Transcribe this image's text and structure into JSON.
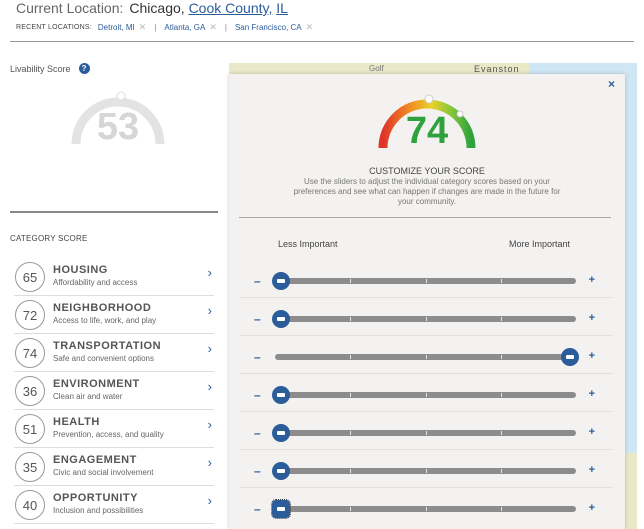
{
  "header": {
    "current_label": "Current Location:",
    "city": "Chicago,",
    "county": "Cook County,",
    "state": "IL",
    "recent_label": "RECENT LOCATIONS:",
    "recent": [
      "Detroit, MI",
      "Atlanta, GA",
      "San Francisco, CA"
    ]
  },
  "left": {
    "livability_label": "Livability Score",
    "score": "53",
    "category_title": "CATEGORY SCORE",
    "categories": [
      {
        "score": "65",
        "name": "HOUSING",
        "desc": "Affordability and access"
      },
      {
        "score": "72",
        "name": "NEIGHBORHOOD",
        "desc": "Access to life, work, and play"
      },
      {
        "score": "74",
        "name": "TRANSPORTATION",
        "desc": "Safe and convenient options"
      },
      {
        "score": "36",
        "name": "ENVIRONMENT",
        "desc": "Clean air and water"
      },
      {
        "score": "51",
        "name": "HEALTH",
        "desc": "Prevention, access, and quality"
      },
      {
        "score": "35",
        "name": "ENGAGEMENT",
        "desc": "Civic and social involvement"
      },
      {
        "score": "40",
        "name": "OPPORTUNITY",
        "desc": "Inclusion and possibilities"
      }
    ]
  },
  "map": {
    "label1": "Golf",
    "label2": "Evanston"
  },
  "modal": {
    "close": "×",
    "score": "74",
    "customize_title": "CUSTOMIZE YOUR SCORE",
    "customize_desc": "Use the sliders to adjust the individual category scores based on your preferences and see what can happen if changes are made in the future for your community.",
    "less_label": "Less Important",
    "more_label": "More Important",
    "minus": "–",
    "plus": "+",
    "sliders": [
      {
        "category": "HOUSING",
        "level": 0
      },
      {
        "category": "NEIGHBORHOOD",
        "level": 0
      },
      {
        "category": "TRANSPORTATION",
        "level": 1
      },
      {
        "category": "ENVIRONMENT",
        "level": 0
      },
      {
        "category": "HEALTH",
        "level": 0
      },
      {
        "category": "ENGAGEMENT",
        "level": 0
      },
      {
        "category": "OPPORTUNITY",
        "level": 0
      }
    ]
  },
  "colors": {
    "accent": "#2a5d9a",
    "score_green": "#2ea23c",
    "gauge_gray": "#d6d6d6"
  }
}
